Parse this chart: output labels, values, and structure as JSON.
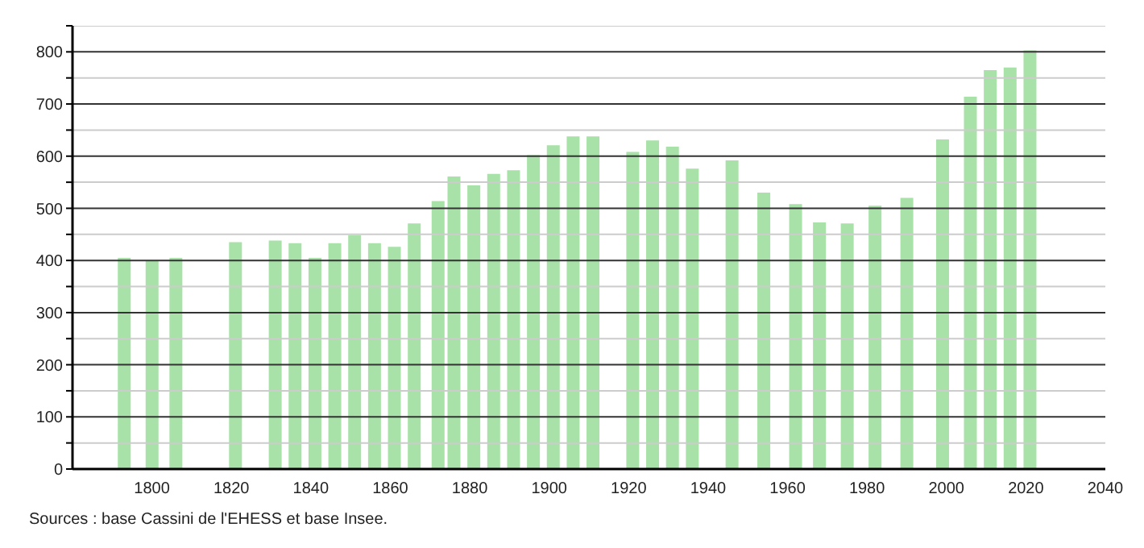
{
  "chart_data": {
    "type": "bar",
    "x": [
      1793,
      1800,
      1806,
      1821,
      1831,
      1836,
      1841,
      1846,
      1851,
      1856,
      1861,
      1866,
      1872,
      1876,
      1881,
      1886,
      1891,
      1896,
      1901,
      1906,
      1911,
      1921,
      1926,
      1931,
      1936,
      1946,
      1954,
      1962,
      1968,
      1975,
      1982,
      1990,
      1999,
      2006,
      2011,
      2016,
      2021
    ],
    "values": [
      405,
      400,
      405,
      435,
      438,
      433,
      405,
      433,
      448,
      433,
      426,
      471,
      514,
      561,
      544,
      566,
      573,
      602,
      621,
      638,
      638,
      608,
      630,
      618,
      576,
      592,
      530,
      508,
      473,
      471,
      505,
      520,
      632,
      714,
      765,
      770,
      803
    ],
    "color": "#a8e2a8",
    "xlim": [
      1780,
      2040
    ],
    "xticks": [
      1800,
      1820,
      1840,
      1860,
      1880,
      1900,
      1920,
      1940,
      1960,
      1980,
      2000,
      2020,
      2040
    ],
    "ylim": [
      0,
      850
    ],
    "yticks": [
      0,
      {
        "value": 50,
        "label": null
      },
      100,
      {
        "value": 150,
        "label": null
      },
      200,
      {
        "value": 250,
        "label": null
      },
      300,
      {
        "value": 350,
        "label": null
      },
      400,
      {
        "value": 450,
        "label": null
      },
      500,
      {
        "value": 550,
        "label": null
      },
      600,
      {
        "value": 650,
        "label": null
      },
      700,
      {
        "value": 750,
        "label": null
      },
      800,
      {
        "value": 850,
        "label": null
      }
    ],
    "grid": "y",
    "annotations": [
      "Sources : base Cassini de l'EHESS et base Insee."
    ]
  }
}
